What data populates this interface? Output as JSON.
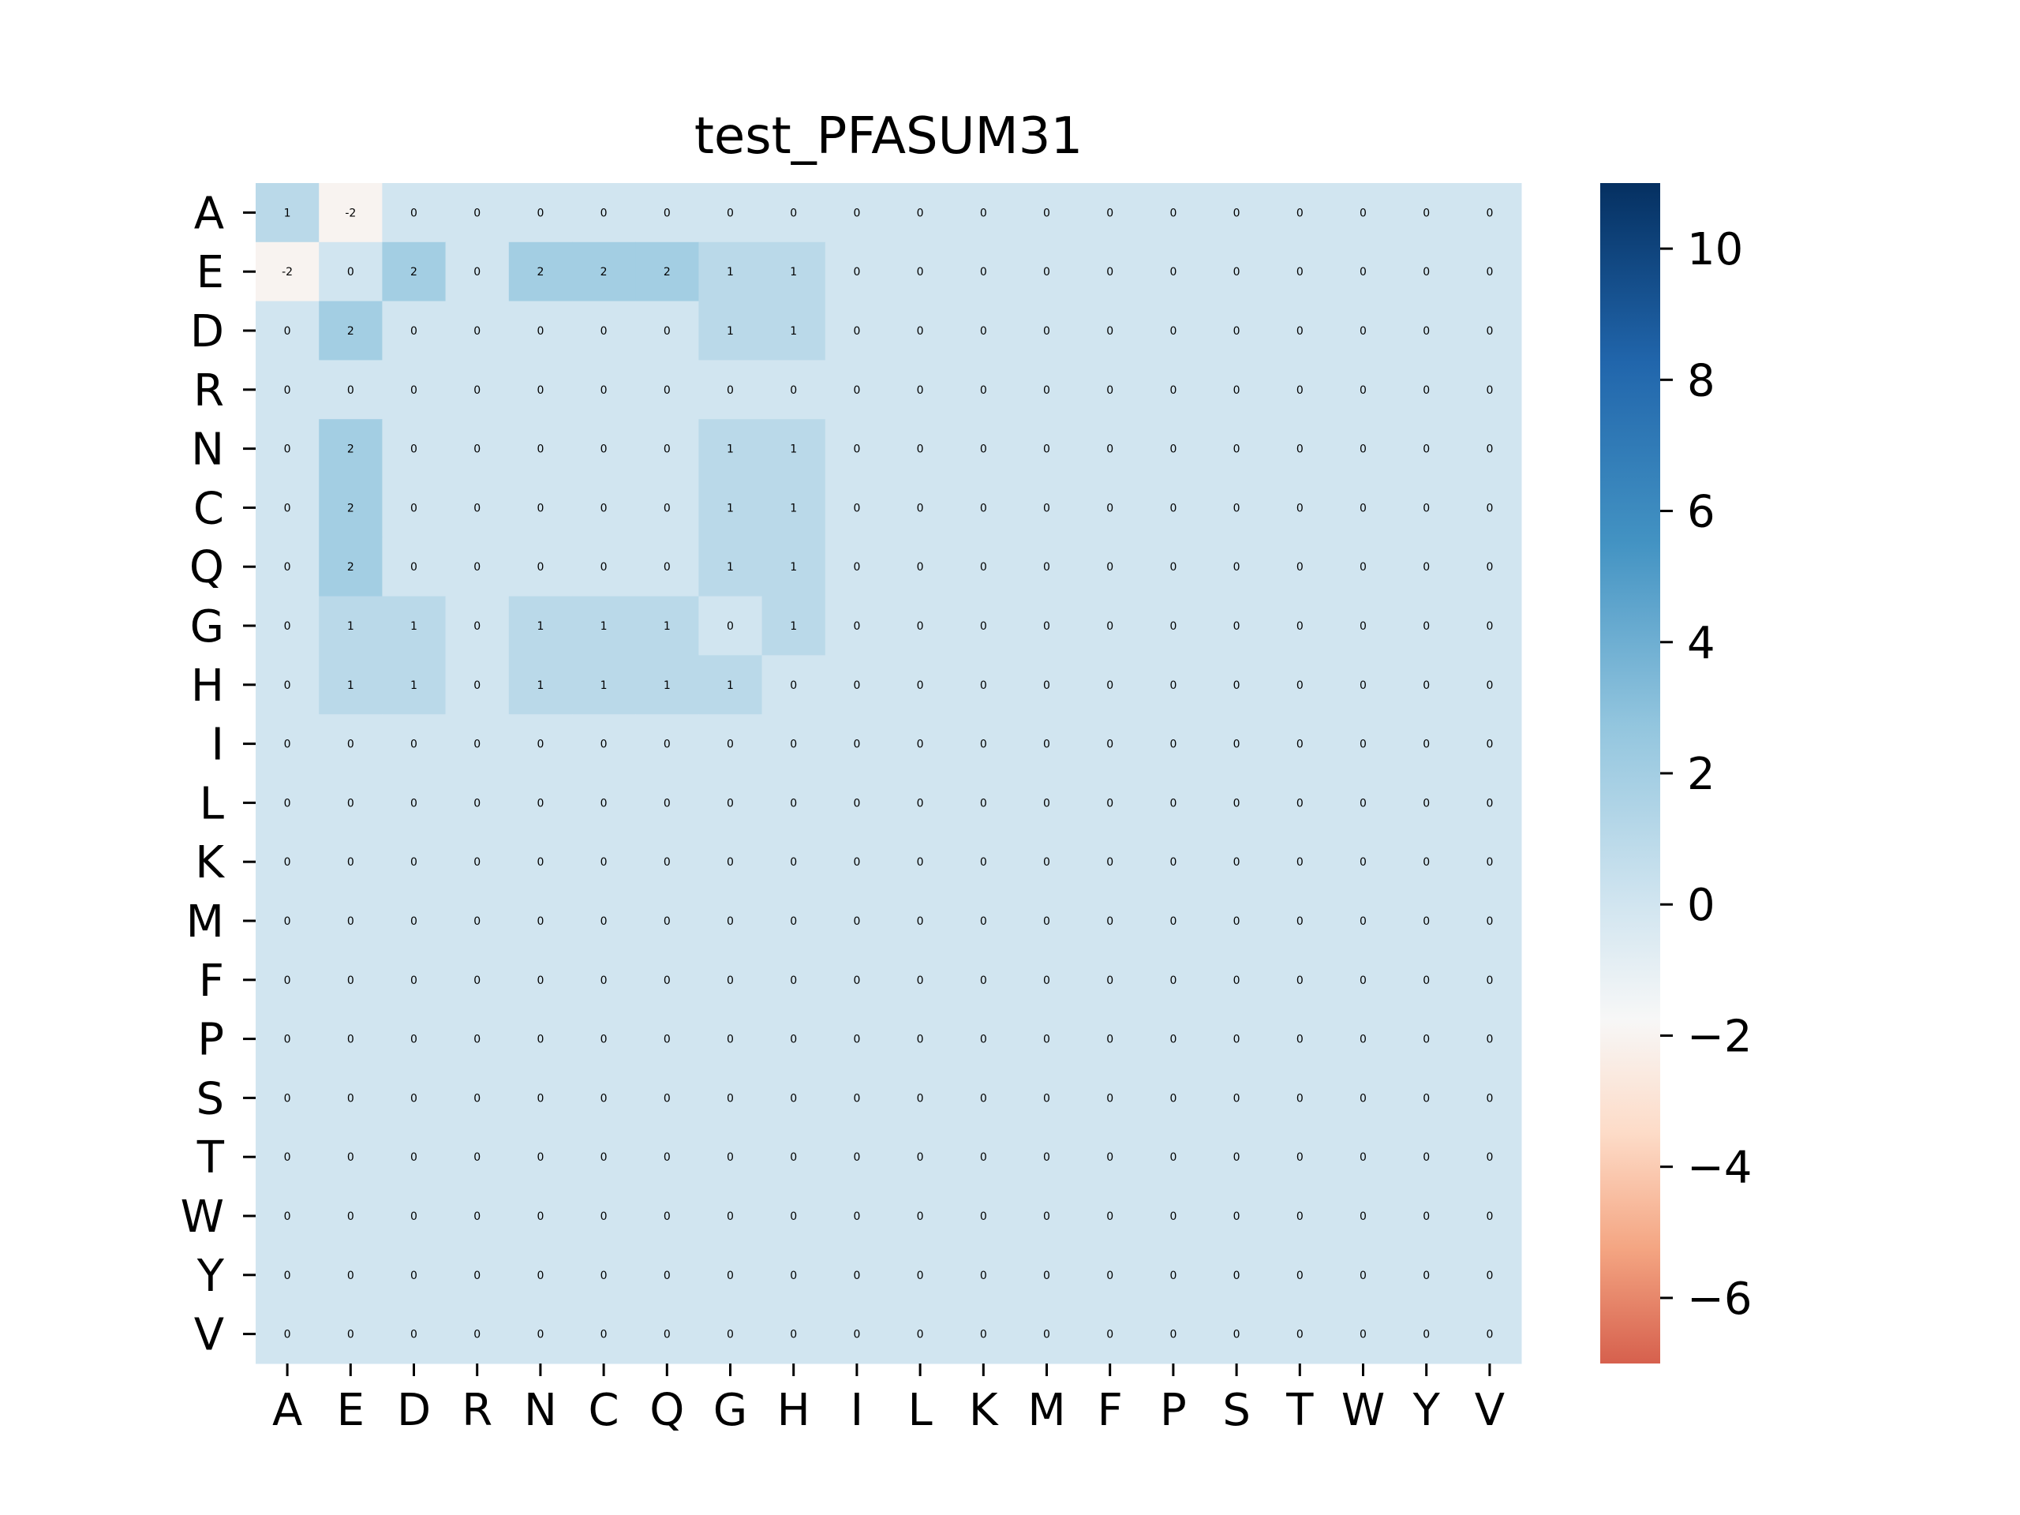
{
  "chart_data": {
    "type": "heatmap",
    "title": "test_PFASUM31",
    "xlabel": "",
    "ylabel": "",
    "rows": [
      "A",
      "E",
      "D",
      "R",
      "N",
      "C",
      "Q",
      "G",
      "H",
      "I",
      "L",
      "K",
      "M",
      "F",
      "P",
      "S",
      "T",
      "W",
      "Y",
      "V"
    ],
    "columns": [
      "A",
      "E",
      "D",
      "R",
      "N",
      "C",
      "Q",
      "G",
      "H",
      "I",
      "L",
      "K",
      "M",
      "F",
      "P",
      "S",
      "T",
      "W",
      "Y",
      "V"
    ],
    "values": [
      [
        1,
        -2,
        0,
        0,
        0,
        0,
        0,
        0,
        0,
        0,
        0,
        0,
        0,
        0,
        0,
        0,
        0,
        0,
        0,
        0
      ],
      [
        -2,
        0,
        2,
        0,
        2,
        2,
        2,
        1,
        1,
        0,
        0,
        0,
        0,
        0,
        0,
        0,
        0,
        0,
        0,
        0
      ],
      [
        0,
        2,
        0,
        0,
        0,
        0,
        0,
        1,
        1,
        0,
        0,
        0,
        0,
        0,
        0,
        0,
        0,
        0,
        0,
        0
      ],
      [
        0,
        0,
        0,
        0,
        0,
        0,
        0,
        0,
        0,
        0,
        0,
        0,
        0,
        0,
        0,
        0,
        0,
        0,
        0,
        0
      ],
      [
        0,
        2,
        0,
        0,
        0,
        0,
        0,
        1,
        1,
        0,
        0,
        0,
        0,
        0,
        0,
        0,
        0,
        0,
        0,
        0
      ],
      [
        0,
        2,
        0,
        0,
        0,
        0,
        0,
        1,
        1,
        0,
        0,
        0,
        0,
        0,
        0,
        0,
        0,
        0,
        0,
        0
      ],
      [
        0,
        2,
        0,
        0,
        0,
        0,
        0,
        1,
        1,
        0,
        0,
        0,
        0,
        0,
        0,
        0,
        0,
        0,
        0,
        0
      ],
      [
        0,
        1,
        1,
        0,
        1,
        1,
        1,
        0,
        1,
        0,
        0,
        0,
        0,
        0,
        0,
        0,
        0,
        0,
        0,
        0
      ],
      [
        0,
        1,
        1,
        0,
        1,
        1,
        1,
        1,
        0,
        0,
        0,
        0,
        0,
        0,
        0,
        0,
        0,
        0,
        0,
        0
      ],
      [
        0,
        0,
        0,
        0,
        0,
        0,
        0,
        0,
        0,
        0,
        0,
        0,
        0,
        0,
        0,
        0,
        0,
        0,
        0,
        0
      ],
      [
        0,
        0,
        0,
        0,
        0,
        0,
        0,
        0,
        0,
        0,
        0,
        0,
        0,
        0,
        0,
        0,
        0,
        0,
        0,
        0
      ],
      [
        0,
        0,
        0,
        0,
        0,
        0,
        0,
        0,
        0,
        0,
        0,
        0,
        0,
        0,
        0,
        0,
        0,
        0,
        0,
        0
      ],
      [
        0,
        0,
        0,
        0,
        0,
        0,
        0,
        0,
        0,
        0,
        0,
        0,
        0,
        0,
        0,
        0,
        0,
        0,
        0,
        0
      ],
      [
        0,
        0,
        0,
        0,
        0,
        0,
        0,
        0,
        0,
        0,
        0,
        0,
        0,
        0,
        0,
        0,
        0,
        0,
        0,
        0
      ],
      [
        0,
        0,
        0,
        0,
        0,
        0,
        0,
        0,
        0,
        0,
        0,
        0,
        0,
        0,
        0,
        0,
        0,
        0,
        0,
        0
      ],
      [
        0,
        0,
        0,
        0,
        0,
        0,
        0,
        0,
        0,
        0,
        0,
        0,
        0,
        0,
        0,
        0,
        0,
        0,
        0,
        0
      ],
      [
        0,
        0,
        0,
        0,
        0,
        0,
        0,
        0,
        0,
        0,
        0,
        0,
        0,
        0,
        0,
        0,
        0,
        0,
        0,
        0
      ],
      [
        0,
        0,
        0,
        0,
        0,
        0,
        0,
        0,
        0,
        0,
        0,
        0,
        0,
        0,
        0,
        0,
        0,
        0,
        0,
        0
      ],
      [
        0,
        0,
        0,
        0,
        0,
        0,
        0,
        0,
        0,
        0,
        0,
        0,
        0,
        0,
        0,
        0,
        0,
        0,
        0,
        0
      ],
      [
        0,
        0,
        0,
        0,
        0,
        0,
        0,
        0,
        0,
        0,
        0,
        0,
        0,
        0,
        0,
        0,
        0,
        0,
        0,
        0
      ]
    ],
    "colorbar": {
      "range": [
        -7,
        11
      ],
      "ticks": [
        -6,
        -4,
        -2,
        0,
        2,
        4,
        6,
        8,
        10
      ],
      "tick_labels": [
        "−6",
        "−4",
        "−2",
        "0",
        "2",
        "4",
        "6",
        "8",
        "10"
      ],
      "colormap": "RdBu",
      "colormap_stops": [
        "#d6604d",
        "#f4a582",
        "#fddbc7",
        "#f7f7f7",
        "#d1e5f0",
        "#92c5de",
        "#4393c3",
        "#2166ac",
        "#053061"
      ]
    },
    "grid": false,
    "legend": "colorbar-right"
  }
}
